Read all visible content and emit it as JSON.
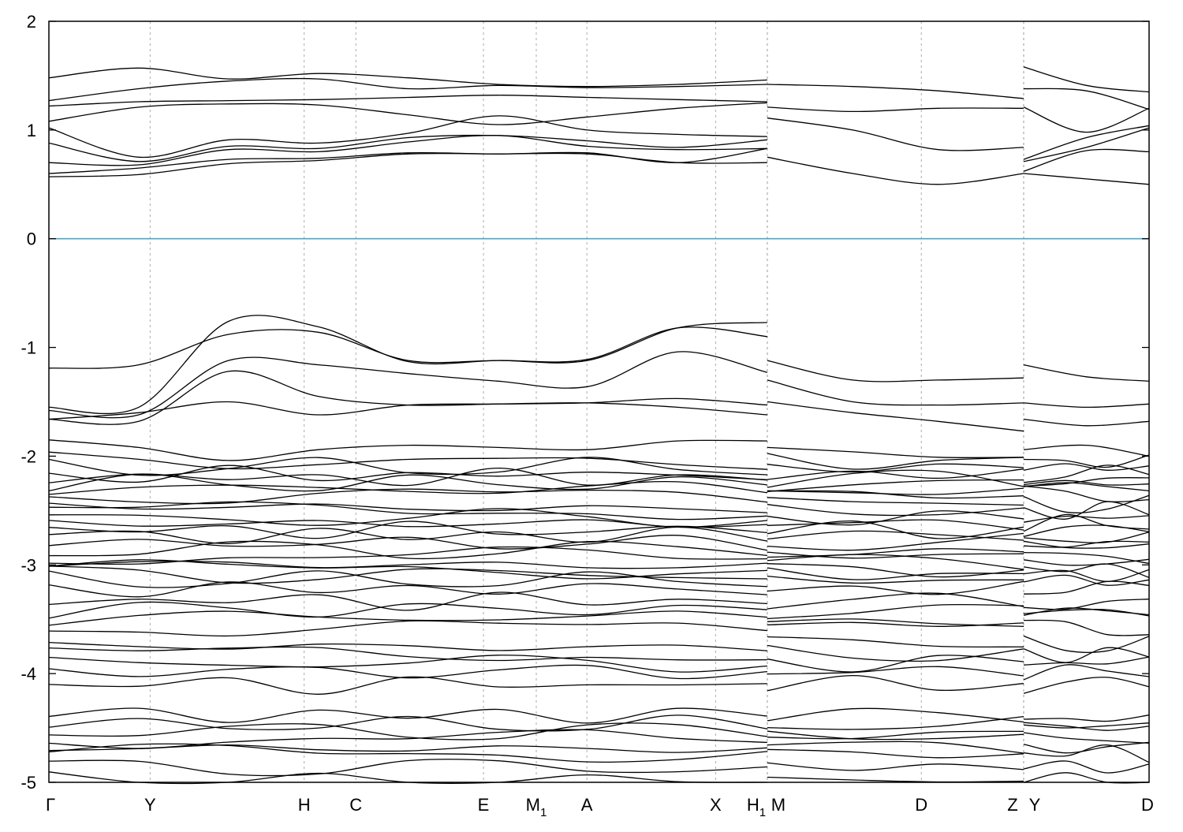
{
  "chart_data": {
    "type": "line",
    "title": "",
    "xlabel": "",
    "ylabel": "",
    "ylim": [
      -5,
      2
    ],
    "yticks": [
      2,
      1,
      0,
      -1,
      -2,
      -3,
      -4,
      -5
    ],
    "ytick_labels": [
      "2",
      "1",
      "0",
      "-1",
      "-2",
      "-3",
      "-4",
      "-5"
    ],
    "grid": "vertical dashed at high-symmetry points",
    "xlim": [
      0,
      1.0
    ],
    "high_symmetry_points": [
      {
        "label": "Γ",
        "x": 0.0
      },
      {
        "label": "Y",
        "x": 0.092
      },
      {
        "label": "H",
        "x": 0.232
      },
      {
        "label": "C",
        "x": 0.279
      },
      {
        "label": "E",
        "x": 0.395
      },
      {
        "label": "M",
        "sub": "1",
        "x": 0.443
      },
      {
        "label": "A",
        "x": 0.489
      },
      {
        "label": "X",
        "x": 0.606
      },
      {
        "label": "H",
        "sub": "1",
        "x": 0.653
      },
      {
        "label": "M",
        "x": 0.653
      },
      {
        "label": "D",
        "x": 0.793
      },
      {
        "label": "Z",
        "x": 0.886
      },
      {
        "label": "Y",
        "x": 0.886
      },
      {
        "label": "D",
        "x": 1.0
      }
    ],
    "path_breaks": [
      0.653,
      0.886
    ],
    "fermi_level": 0,
    "series": [
      {
        "segment": 0,
        "bands": [
          [
            1.48,
            1.57,
            1.47,
            1.52,
            1.48,
            1.42,
            1.4,
            1.42,
            1.46
          ],
          [
            1.27,
            1.38,
            1.45,
            1.47,
            1.38,
            1.41,
            1.39,
            1.4,
            1.42
          ],
          [
            1.22,
            1.26,
            1.27,
            1.28,
            1.3,
            1.32,
            1.3,
            1.28,
            1.26
          ],
          [
            1.08,
            1.21,
            1.24,
            1.23,
            1.14,
            1.05,
            1.12,
            1.2,
            1.25
          ],
          [
            1.02,
            0.75,
            0.91,
            0.88,
            0.97,
            1.13,
            1.0,
            0.96,
            0.94
          ],
          [
            0.88,
            0.71,
            0.85,
            0.83,
            0.93,
            0.95,
            0.9,
            0.84,
            0.91
          ],
          [
            0.7,
            0.68,
            0.82,
            0.8,
            0.89,
            0.95,
            0.85,
            0.82,
            0.83
          ],
          [
            0.6,
            0.65,
            0.73,
            0.74,
            0.79,
            0.78,
            0.79,
            0.7,
            0.83
          ],
          [
            0.57,
            0.59,
            0.69,
            0.72,
            0.78,
            0.78,
            0.78,
            0.7,
            0.7
          ],
          [
            -1.19,
            -1.16,
            -0.88,
            -0.86,
            -1.12,
            -1.12,
            -1.12,
            -0.82,
            -0.77
          ],
          [
            -1.55,
            -1.55,
            -0.76,
            -0.81,
            -1.13,
            -1.12,
            -1.11,
            -0.82,
            -0.9
          ],
          [
            -1.58,
            -1.62,
            -1.12,
            -1.16,
            -1.24,
            -1.31,
            -1.36,
            -1.04,
            -1.23
          ],
          [
            -1.66,
            -1.68,
            -1.22,
            -1.45,
            -1.53,
            -1.52,
            -1.51,
            -1.47,
            -1.53
          ],
          [
            -1.66,
            -1.6,
            -1.5,
            -1.62,
            -1.53,
            -1.52,
            -1.51,
            -1.55,
            -1.62
          ],
          [
            -1.85,
            -1.92,
            -2.04,
            -1.94,
            -1.9,
            -1.92,
            -1.94,
            -1.86,
            -1.86
          ]
        ]
      },
      {
        "segment": 1,
        "bands": [
          [
            1.42,
            1.4,
            1.36,
            1.29
          ],
          [
            1.21,
            1.17,
            1.2,
            1.2
          ],
          [
            1.11,
            1.0,
            0.82,
            0.84
          ],
          [
            0.75,
            0.6,
            0.5,
            0.6
          ],
          [
            -1.12,
            -1.3,
            -1.3,
            -1.28
          ],
          [
            -1.3,
            -1.5,
            -1.53,
            -1.51
          ],
          [
            -1.5,
            -1.6,
            -1.68,
            -1.77
          ],
          [
            -1.92,
            -1.96,
            -2.01,
            -2.01
          ]
        ]
      },
      {
        "segment": 2,
        "bands": [
          [
            1.58,
            1.41,
            1.35
          ],
          [
            1.38,
            1.36,
            1.19
          ],
          [
            1.21,
            0.98,
            1.2
          ],
          [
            0.73,
            0.93,
            1.04
          ],
          [
            0.71,
            0.84,
            1.02
          ],
          [
            0.62,
            0.81,
            0.8
          ],
          [
            0.6,
            0.55,
            0.5
          ],
          [
            -1.16,
            -1.27,
            -1.31
          ],
          [
            -1.51,
            -1.55,
            -1.52
          ],
          [
            -1.66,
            -1.72,
            -1.68
          ],
          [
            -1.94,
            -1.9,
            -2.0
          ]
        ]
      }
    ],
    "dense_bands_segment_values": [
      [
        -2.05,
        -2.1,
        -2.17,
        -2.2,
        -2.25,
        -2.3,
        -2.36,
        -2.45,
        -2.5,
        -2.57,
        -2.62,
        -2.68,
        -2.73,
        -2.8,
        -2.86,
        -2.92,
        -2.98,
        -3.04,
        -3.09,
        -3.14,
        -3.22,
        -3.33,
        -3.41,
        -3.48,
        -3.58,
        -3.74,
        -3.82,
        -3.9,
        -3.98,
        -4.1,
        -4.38,
        -4.47,
        -4.53,
        -4.6,
        -4.68,
        -4.73,
        -4.86,
        -4.98
      ]
    ]
  }
}
